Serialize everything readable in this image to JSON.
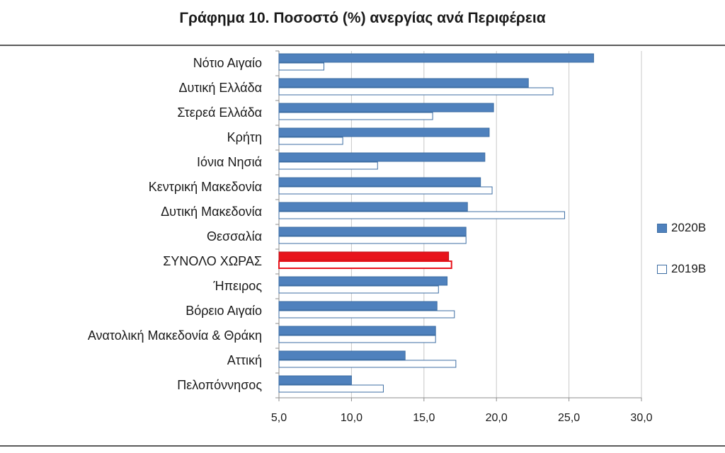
{
  "chart_data": {
    "type": "bar",
    "orientation": "horizontal",
    "title": "Γράφημα 10. Ποσοστό (%) ανεργίας ανά Περιφέρεια",
    "categories": [
      "Νότιο Αιγαίο",
      "Δυτική Ελλάδα",
      "Στερεά Ελλάδα",
      "Κρήτη",
      "Ιόνια Νησιά",
      "Κεντρική Μακεδονία",
      "Δυτική Μακεδονία",
      "Θεσσαλία",
      "ΣΥΝΟΛΟ ΧΩΡΑΣ",
      "Ήπειρος",
      "Βόρειο Αιγαίο",
      "Ανατολική Μακεδονία & Θράκη",
      "Αττική",
      "Πελοπόννησος"
    ],
    "series": [
      {
        "name": "2020Β",
        "color": "#4f81bd",
        "values": [
          26.7,
          22.2,
          19.8,
          19.5,
          19.2,
          18.9,
          18.0,
          17.9,
          16.7,
          16.6,
          15.9,
          15.8,
          13.7,
          10.0
        ]
      },
      {
        "name": "2019Β",
        "color": "#ffffff",
        "values": [
          8.1,
          23.9,
          15.6,
          9.4,
          11.8,
          19.7,
          24.7,
          17.9,
          16.9,
          16.0,
          17.1,
          15.8,
          17.2,
          12.2
        ]
      }
    ],
    "highlight": {
      "category": "ΣΥΝΟΛΟ ΧΩΡΑΣ",
      "color": "#e8141c"
    },
    "xlim": [
      5.0,
      30.0
    ],
    "xticks": [
      "5,0",
      "10,0",
      "15,0",
      "20,0",
      "25,0",
      "30,0"
    ],
    "grid": true,
    "legend_position": "right"
  }
}
